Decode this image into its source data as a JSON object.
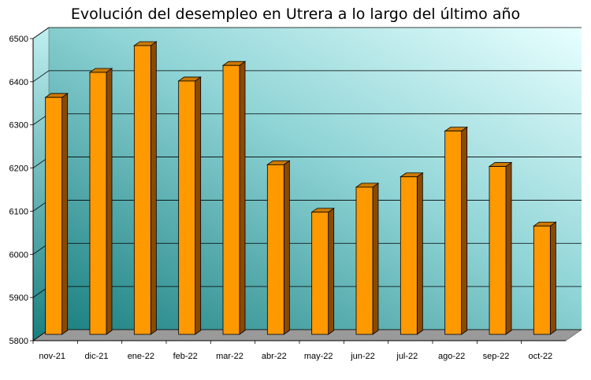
{
  "chart_data": {
    "type": "bar",
    "title": "Evolución del desempleo en Utrera a lo largo del último año",
    "categories": [
      "nov-21",
      "dic-21",
      "ene-22",
      "feb-22",
      "mar-22",
      "abr-22",
      "may-22",
      "jun-22",
      "jul-22",
      "ago-22",
      "sep-22",
      "oct-22"
    ],
    "values": [
      6360,
      6418,
      6480,
      6398,
      6434,
      6204,
      6094,
      6152,
      6176,
      6282,
      6200,
      6062
    ],
    "ylim": [
      5800,
      6500
    ],
    "yticks": [
      5800,
      5900,
      6000,
      6100,
      6200,
      6300,
      6400,
      6500
    ],
    "xlabel": "",
    "ylabel": "",
    "grid": true,
    "legend": "none",
    "colors": {
      "bar_front": "#ff9900",
      "bar_side": "#8a4a00",
      "bar_top": "#cc7a00",
      "wall_dark": "#1a7f80",
      "wall_light": "#d6ffff",
      "floor": "#9a9a9a"
    }
  }
}
